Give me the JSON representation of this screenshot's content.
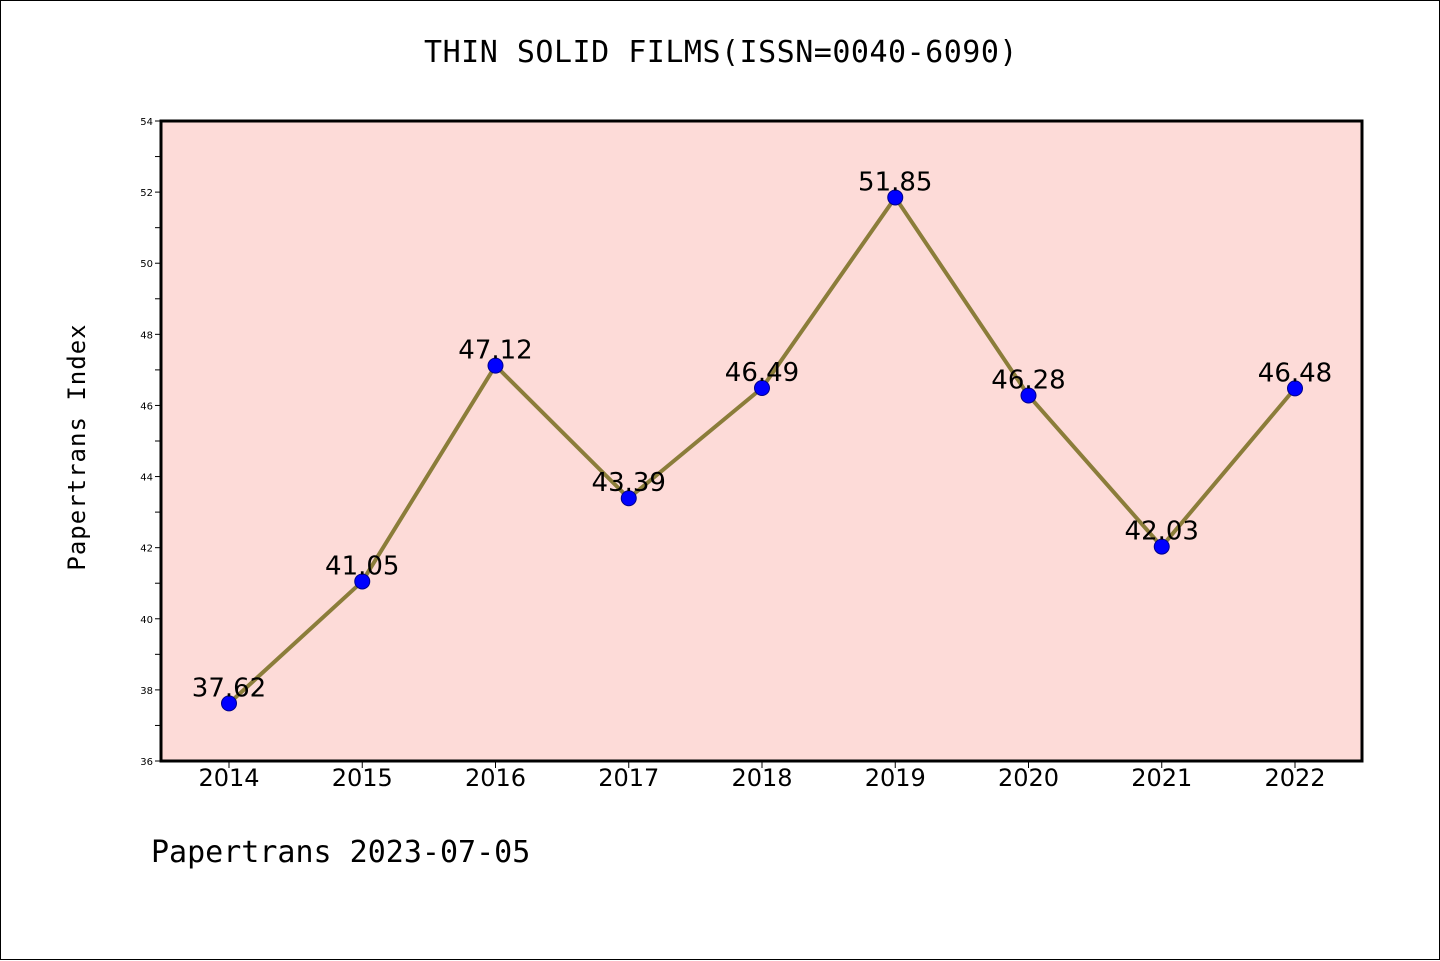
{
  "title": "THIN SOLID FILMS(ISSN=0040-6090)",
  "footer": "Papertrans 2023-07-05",
  "chart_data": {
    "type": "line",
    "title": "THIN SOLID FILMS(ISSN=0040-6090)",
    "xlabel": "",
    "ylabel": "Papertrans Index",
    "categories": [
      "2014",
      "2015",
      "2016",
      "2017",
      "2018",
      "2019",
      "2020",
      "2021",
      "2022"
    ],
    "series": [
      {
        "values": [
          37.62,
          41.05,
          47.12,
          43.39,
          46.49,
          51.85,
          46.28,
          42.03,
          46.48
        ]
      }
    ],
    "data_labels": [
      "37.62",
      "41.05",
      "47.12",
      "43.39",
      "46.49",
      "51.85",
      "46.28",
      "42.03",
      "46.48"
    ],
    "ylim": [
      36,
      54
    ],
    "yticks": [
      36,
      38,
      40,
      42,
      44,
      46,
      48,
      50,
      52,
      54
    ],
    "grid": false,
    "legend": "none",
    "colors": {
      "plot_background": "#fddbd8",
      "line": "#8b7d3a",
      "marker": "#0000ff"
    }
  }
}
